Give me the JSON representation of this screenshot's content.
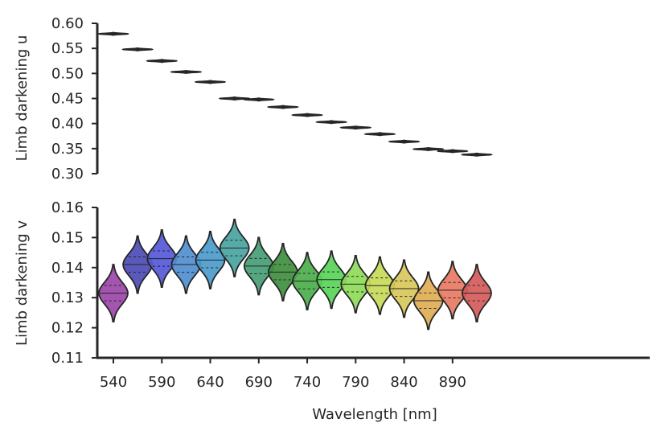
{
  "chart_data": {
    "type": "violin",
    "xlabel": "Wavelength [nm]",
    "categories": [
      540,
      565,
      590,
      615,
      640,
      665,
      690,
      715,
      740,
      765,
      790,
      815,
      840,
      865,
      890,
      915
    ],
    "xtick_labels": [
      "540",
      "590",
      "640",
      "690",
      "740",
      "790",
      "840",
      "890"
    ],
    "colors": [
      "#9b47a8",
      "#4d4bb5",
      "#5558d8",
      "#4f8ed0",
      "#4a9bcc",
      "#48a3a0",
      "#449e74",
      "#3f8f3f",
      "#4caf4c",
      "#58d458",
      "#8edb58",
      "#c7da58",
      "#d8c85a",
      "#e0ae55",
      "#e87a62",
      "#d55b5b"
    ],
    "panels": [
      {
        "ylabel": "Limb darkening u",
        "ylim": [
          0.3,
          0.6
        ],
        "yticks": [
          "0.30",
          "0.35",
          "0.40",
          "0.45",
          "0.50",
          "0.55",
          "0.60"
        ],
        "medians": [
          0.579,
          0.548,
          0.525,
          0.503,
          0.483,
          0.45,
          0.448,
          0.433,
          0.417,
          0.403,
          0.392,
          0.379,
          0.364,
          0.349,
          0.345,
          0.338
        ],
        "spread": 0.0025
      },
      {
        "ylabel": "Limb darkening v",
        "ylim": [
          0.11,
          0.16
        ],
        "yticks": [
          "0.11",
          "0.12",
          "0.13",
          "0.14",
          "0.15",
          "0.16"
        ],
        "medians": [
          0.1315,
          0.141,
          0.143,
          0.141,
          0.1425,
          0.1465,
          0.1405,
          0.1385,
          0.1355,
          0.136,
          0.1345,
          0.134,
          0.133,
          0.129,
          0.1325,
          0.1315
        ],
        "spread": 0.0095
      }
    ]
  }
}
